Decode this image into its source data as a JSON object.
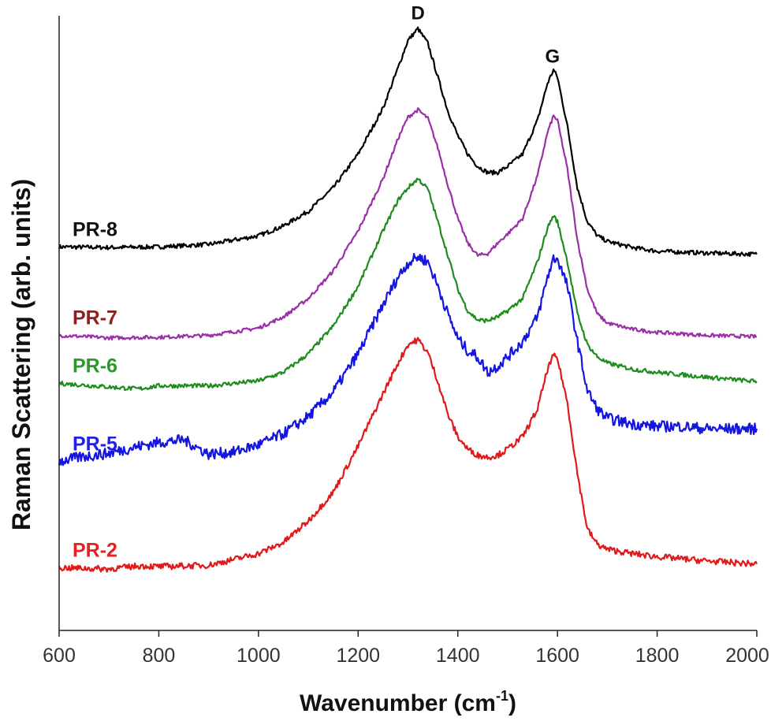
{
  "chart_data": {
    "type": "line",
    "title": "",
    "xlabel": "Wavenumber (cm",
    "xlabel_sup": "-1",
    "xlabel_end": ")",
    "ylabel": "Raman Scattering (arb. units)",
    "xlim": [
      600,
      2000
    ],
    "ylim": [
      0,
      100
    ],
    "x_ticks": [
      "600",
      "800",
      "1000",
      "1200",
      "1400",
      "1600",
      "1800",
      "2000"
    ],
    "y_ticks": [],
    "grid": false,
    "legend": "inline labels at left",
    "peak_annotations": [
      {
        "label": "D",
        "x": 1320
      },
      {
        "label": "G",
        "x": 1590
      }
    ],
    "series": [
      {
        "name": "PR-8",
        "color": "#000000",
        "points": [
          [
            600,
            62.4
          ],
          [
            700,
            62.3
          ],
          [
            800,
            62.4
          ],
          [
            900,
            62.8
          ],
          [
            1000,
            64.2
          ],
          [
            1050,
            65.8
          ],
          [
            1100,
            68.2
          ],
          [
            1150,
            72.0
          ],
          [
            1200,
            77.5
          ],
          [
            1250,
            85.0
          ],
          [
            1280,
            91.5
          ],
          [
            1300,
            96.0
          ],
          [
            1320,
            97.9
          ],
          [
            1340,
            95.5
          ],
          [
            1360,
            90.0
          ],
          [
            1380,
            84.5
          ],
          [
            1400,
            80.5
          ],
          [
            1420,
            77.5
          ],
          [
            1440,
            75.5
          ],
          [
            1460,
            74.5
          ],
          [
            1480,
            74.5
          ],
          [
            1500,
            75.5
          ],
          [
            1530,
            77.5
          ],
          [
            1560,
            83.0
          ],
          [
            1580,
            89.0
          ],
          [
            1592,
            91.2
          ],
          [
            1600,
            90.0
          ],
          [
            1620,
            82.0
          ],
          [
            1640,
            72.0
          ],
          [
            1660,
            66.5
          ],
          [
            1680,
            64.2
          ],
          [
            1700,
            63.3
          ],
          [
            1750,
            62.3
          ],
          [
            1800,
            61.7
          ],
          [
            1900,
            61.4
          ],
          [
            2000,
            61.2
          ]
        ]
      },
      {
        "name": "PR-7",
        "color": "#9a2fa8",
        "points": [
          [
            600,
            48.0
          ],
          [
            700,
            47.6
          ],
          [
            800,
            47.7
          ],
          [
            900,
            48.0
          ],
          [
            1000,
            49.2
          ],
          [
            1050,
            51.0
          ],
          [
            1100,
            54.0
          ],
          [
            1150,
            58.5
          ],
          [
            1200,
            65.0
          ],
          [
            1250,
            73.5
          ],
          [
            1280,
            80.0
          ],
          [
            1300,
            83.5
          ],
          [
            1320,
            84.7
          ],
          [
            1340,
            83.3
          ],
          [
            1360,
            78.5
          ],
          [
            1380,
            72.5
          ],
          [
            1400,
            67.0
          ],
          [
            1420,
            63.0
          ],
          [
            1440,
            61.0
          ],
          [
            1460,
            61.3
          ],
          [
            1480,
            63.0
          ],
          [
            1500,
            64.5
          ],
          [
            1530,
            67.0
          ],
          [
            1560,
            74.0
          ],
          [
            1580,
            81.0
          ],
          [
            1592,
            83.7
          ],
          [
            1600,
            83.0
          ],
          [
            1620,
            75.0
          ],
          [
            1640,
            63.5
          ],
          [
            1660,
            55.5
          ],
          [
            1680,
            51.5
          ],
          [
            1700,
            50.0
          ],
          [
            1750,
            49.0
          ],
          [
            1800,
            48.5
          ],
          [
            1900,
            48.0
          ],
          [
            2000,
            47.8
          ]
        ]
      },
      {
        "name": "PR-6",
        "color": "#1e8c1e",
        "points": [
          [
            600,
            40.2
          ],
          [
            700,
            39.6
          ],
          [
            760,
            39.3
          ],
          [
            800,
            39.8
          ],
          [
            900,
            39.8
          ],
          [
            1000,
            40.6
          ],
          [
            1050,
            42.0
          ],
          [
            1100,
            45.0
          ],
          [
            1150,
            49.5
          ],
          [
            1200,
            56.0
          ],
          [
            1250,
            65.0
          ],
          [
            1280,
            70.0
          ],
          [
            1300,
            72.0
          ],
          [
            1320,
            73.5
          ],
          [
            1340,
            71.8
          ],
          [
            1360,
            66.5
          ],
          [
            1380,
            61.0
          ],
          [
            1400,
            55.5
          ],
          [
            1420,
            52.0
          ],
          [
            1440,
            50.5
          ],
          [
            1460,
            50.4
          ],
          [
            1480,
            51.0
          ],
          [
            1500,
            52.0
          ],
          [
            1530,
            54.0
          ],
          [
            1560,
            60.0
          ],
          [
            1580,
            65.5
          ],
          [
            1592,
            67.5
          ],
          [
            1600,
            66.5
          ],
          [
            1620,
            60.0
          ],
          [
            1640,
            51.5
          ],
          [
            1660,
            46.5
          ],
          [
            1680,
            44.5
          ],
          [
            1700,
            43.5
          ],
          [
            1750,
            42.5
          ],
          [
            1800,
            42.0
          ],
          [
            1900,
            41.2
          ],
          [
            2000,
            40.5
          ]
        ]
      },
      {
        "name": "PR-5",
        "color": "#1515e0",
        "points": [
          [
            600,
            27.5
          ],
          [
            650,
            28.3
          ],
          [
            700,
            28.8
          ],
          [
            750,
            29.8
          ],
          [
            800,
            30.6
          ],
          [
            850,
            31.0
          ],
          [
            900,
            28.7
          ],
          [
            950,
            29.0
          ],
          [
            1000,
            30.2
          ],
          [
            1050,
            32.0
          ],
          [
            1100,
            34.8
          ],
          [
            1150,
            38.8
          ],
          [
            1200,
            45.0
          ],
          [
            1250,
            53.0
          ],
          [
            1280,
            57.5
          ],
          [
            1300,
            59.8
          ],
          [
            1320,
            60.8
          ],
          [
            1340,
            60.0
          ],
          [
            1360,
            56.0
          ],
          [
            1380,
            51.5
          ],
          [
            1400,
            47.5
          ],
          [
            1420,
            45.5
          ],
          [
            1440,
            44.5
          ],
          [
            1460,
            42.0
          ],
          [
            1480,
            43.0
          ],
          [
            1500,
            44.5
          ],
          [
            1530,
            47.0
          ],
          [
            1560,
            51.0
          ],
          [
            1580,
            57.5
          ],
          [
            1592,
            60.5
          ],
          [
            1600,
            60.5
          ],
          [
            1620,
            56.0
          ],
          [
            1640,
            47.0
          ],
          [
            1660,
            39.0
          ],
          [
            1680,
            36.0
          ],
          [
            1700,
            34.5
          ],
          [
            1750,
            33.6
          ],
          [
            1800,
            33.2
          ],
          [
            1850,
            33.2
          ],
          [
            1900,
            32.8
          ],
          [
            2000,
            32.8
          ]
        ]
      },
      {
        "name": "PR-2",
        "color": "#e01a1a",
        "points": [
          [
            600,
            10.2
          ],
          [
            700,
            10.0
          ],
          [
            760,
            10.5
          ],
          [
            800,
            10.4
          ],
          [
            900,
            10.6
          ],
          [
            1000,
            12.5
          ],
          [
            1050,
            14.3
          ],
          [
            1100,
            17.8
          ],
          [
            1150,
            22.5
          ],
          [
            1200,
            30.0
          ],
          [
            1250,
            38.5
          ],
          [
            1280,
            43.5
          ],
          [
            1300,
            46.5
          ],
          [
            1320,
            47.3
          ],
          [
            1340,
            45.2
          ],
          [
            1360,
            40.5
          ],
          [
            1380,
            35.2
          ],
          [
            1400,
            31.5
          ],
          [
            1420,
            29.5
          ],
          [
            1440,
            28.5
          ],
          [
            1460,
            28.2
          ],
          [
            1480,
            28.5
          ],
          [
            1500,
            29.5
          ],
          [
            1530,
            31.5
          ],
          [
            1560,
            36.0
          ],
          [
            1580,
            42.5
          ],
          [
            1592,
            44.7
          ],
          [
            1600,
            44.2
          ],
          [
            1620,
            37.0
          ],
          [
            1640,
            25.5
          ],
          [
            1660,
            16.5
          ],
          [
            1680,
            14.0
          ],
          [
            1700,
            13.2
          ],
          [
            1750,
            12.5
          ],
          [
            1800,
            12.0
          ],
          [
            1900,
            11.3
          ],
          [
            2000,
            10.8
          ]
        ]
      }
    ],
    "series_label_colors": {
      "PR-8": "#111111",
      "PR-7": "#8b2020",
      "PR-6": "#2a9a2a",
      "PR-5": "#2020e8",
      "PR-2": "#e42020"
    }
  }
}
